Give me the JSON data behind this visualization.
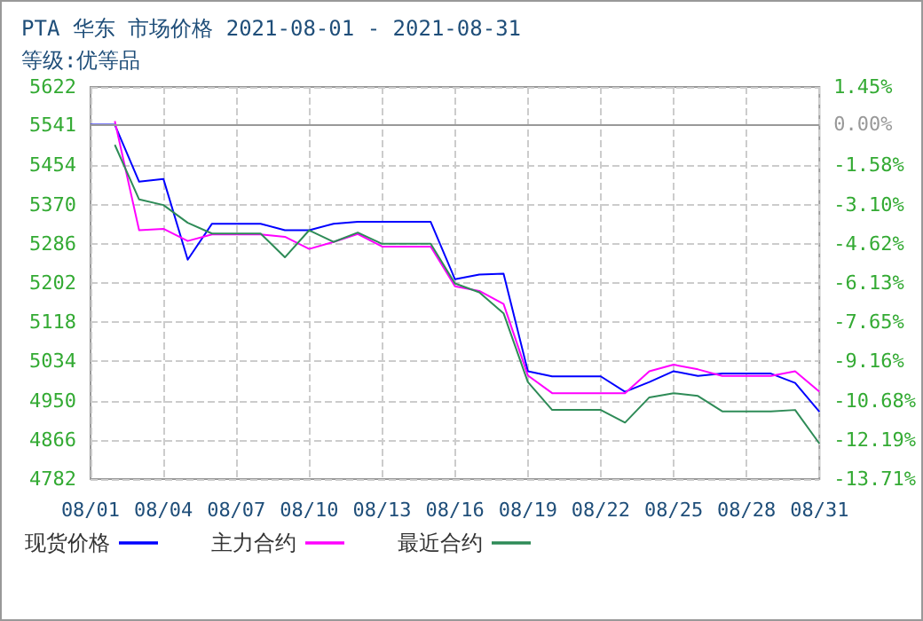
{
  "chart_data": {
    "type": "line",
    "title": "PTA 华东 市场价格 2021-08-01 - 2021-08-31",
    "subtitle": "等级:优等品",
    "categories": [
      "08/01",
      null,
      null,
      "08/04",
      null,
      null,
      "08/07",
      null,
      null,
      "08/10",
      null,
      null,
      "08/13",
      null,
      null,
      "08/16",
      null,
      null,
      "08/19",
      null,
      null,
      "08/22",
      null,
      null,
      "08/25",
      null,
      null,
      "08/28",
      null,
      null,
      "08/31"
    ],
    "series": [
      {
        "name": "现货价格",
        "color": "#0000ff",
        "values": [
          5541,
          5541,
          5419,
          5425,
          5252,
          5329,
          5329,
          5329,
          5315,
          5315,
          5329,
          5333,
          5333,
          5333,
          5333,
          5210,
          5220,
          5222,
          5013,
          5002,
          5002,
          5002,
          4969,
          4990,
          5013,
          5003,
          5008,
          5008,
          5008,
          4988,
          4926
        ]
      },
      {
        "name": "主力合约",
        "color": "#ff00ff",
        "values": [
          null,
          5549,
          5315,
          5318,
          5292,
          5306,
          5306,
          5306,
          5301,
          5275,
          5290,
          5307,
          5280,
          5280,
          5280,
          5195,
          5185,
          5157,
          5004,
          4966,
          4966,
          4966,
          4966,
          5013,
          5027,
          5017,
          5003,
          5003,
          5003,
          5013,
          4969
        ]
      },
      {
        "name": "最近合约",
        "color": "#2e8b57",
        "values": [
          null,
          5498,
          5381,
          5369,
          5331,
          5308,
          5308,
          5308,
          5257,
          5315,
          5290,
          5310,
          5286,
          5286,
          5286,
          5201,
          5182,
          5137,
          4990,
          4930,
          4930,
          4930,
          4903,
          4957,
          4966,
          4960,
          4927,
          4927,
          4927,
          4930,
          4858
        ]
      }
    ],
    "ylim": [
      4782,
      5622
    ],
    "yticks": [
      4782,
      4866,
      4950,
      5034,
      5118,
      5202,
      5286,
      5370,
      5454,
      5541,
      5622
    ],
    "y2lim": [
      -13.71,
      1.45
    ],
    "y2ticks": [
      {
        "value": -13.71,
        "label": "-13.71%"
      },
      {
        "value": -12.19,
        "label": "-12.19%"
      },
      {
        "value": -10.68,
        "label": "-10.68%"
      },
      {
        "value": -9.16,
        "label": "-9.16%"
      },
      {
        "value": -7.65,
        "label": "-7.65%"
      },
      {
        "value": -6.13,
        "label": "-6.13%"
      },
      {
        "value": -4.62,
        "label": "-4.62%"
      },
      {
        "value": -3.1,
        "label": "-3.10%"
      },
      {
        "value": -1.58,
        "label": "-1.58%"
      },
      {
        "value": 0,
        "label": "0.00%"
      },
      {
        "value": 1.45,
        "label": "1.45%"
      }
    ],
    "ref_lines": [
      {
        "axis": "y",
        "value": 5541,
        "color": "#999999"
      }
    ],
    "grid": true,
    "legend": "bottom",
    "marker": "none",
    "line_style": "solid"
  }
}
